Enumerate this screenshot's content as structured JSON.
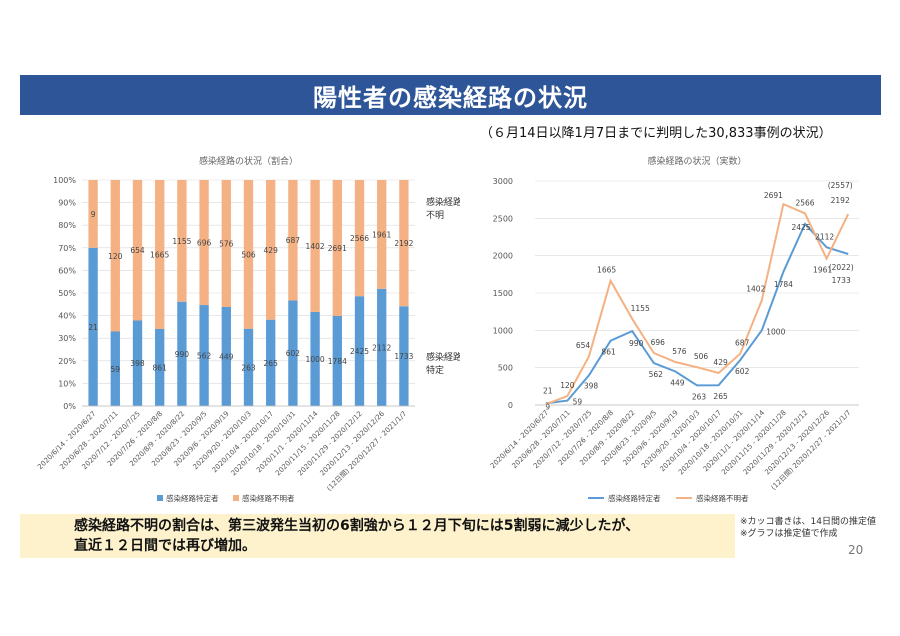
{
  "header": {
    "title": "陽性者の感染経路の状況",
    "subtitle": "（６月14日以降1月7日までに判明した30,833事例の状況）"
  },
  "summary": {
    "line1": "感染経路不明の割合は、第三波発生当初の6割強から１２月下旬には5割弱に減少したが、",
    "line2": "直近１２日間では再び増加。"
  },
  "notes": {
    "note1": "※カッコ書きは、14日間の推定値",
    "note2": "※グラフは推定値で作成"
  },
  "page_number": "20",
  "colors": {
    "known": "#5b9bd5",
    "unknown": "#f4b183",
    "title_bg": "#2d5597",
    "summary_bg": "#fdf2cc"
  },
  "chart_data": [
    {
      "type": "bar",
      "stacked": "percent",
      "title": "感染経路の状況（割合）",
      "categories": [
        "2020/6/14 - 2020/6/27",
        "2020/6/28 - 2020/7/11",
        "2020/7/12 - 2020/7/25",
        "2020/7/26 - 2020/8/8",
        "2020/8/9 - 2020/8/22",
        "2020/8/23 - 2020/9/5",
        "2020/9/6 - 2020/9/19",
        "2020/9/20 - 2020/10/3",
        "2020/10/4 - 2020/10/17",
        "2020/10/18 - 2020/10/31",
        "2020/11/1 - 2020/11/14",
        "2020/11/15 - 2020/11/28",
        "2020/11/29 - 2020/12/12",
        "2020/12/13 - 2020/12/26",
        "2020/12/27 - 2021/1/7"
      ],
      "last_category_note": "(12日間)",
      "series": [
        {
          "name": "感染経路特定者",
          "values": [
            21,
            59,
            398,
            861,
            990,
            562,
            449,
            263,
            265,
            602,
            1000,
            1784,
            2425,
            2112,
            1733
          ],
          "labels": [
            "21",
            "59",
            "398",
            "861",
            "990",
            "562",
            "449",
            "263",
            "265",
            "602",
            "1000",
            "1784",
            "2425",
            "2112",
            "1733"
          ]
        },
        {
          "name": "感染経路不明者",
          "values": [
            9,
            120,
            654,
            1665,
            1155,
            696,
            576,
            506,
            429,
            687,
            1402,
            2691,
            2566,
            1961,
            2192
          ],
          "labels": [
            "9",
            "120",
            "654",
            "1665",
            "1155",
            "696",
            "576",
            "506",
            "429",
            "687",
            "1402",
            "2691",
            "2566",
            "1961",
            "2192"
          ]
        }
      ],
      "yticks": [
        "0%",
        "10%",
        "20%",
        "30%",
        "40%",
        "50%",
        "60%",
        "70%",
        "80%",
        "90%",
        "100%"
      ],
      "ylim": [
        0,
        100
      ],
      "side_labels": {
        "top": [
          "感染経路",
          "不明"
        ],
        "bottom": [
          "感染経路",
          "特定"
        ]
      },
      "legend": [
        "感染経路特定者",
        "感染経路不明者"
      ]
    },
    {
      "type": "line",
      "title": "感染経路の状況（実数）",
      "categories": [
        "2020/6/14 - 2020/6/27",
        "2020/6/28 - 2020/7/11",
        "2020/7/12 - 2020/7/25",
        "2020/7/26 - 2020/8/8",
        "2020/8/9 - 2020/8/22",
        "2020/8/23 - 2020/9/5",
        "2020/9/6 - 2020/9/19",
        "2020/9/20 - 2020/10/3",
        "2020/10/4 - 2020/10/17",
        "2020/10/18 - 2020/10/31",
        "2020/11/1 - 2020/11/14",
        "2020/11/15 - 2020/11/28",
        "2020/11/29 - 2020/12/12",
        "2020/12/13 - 2020/12/26",
        "2020/12/27 - 2021/1/7"
      ],
      "last_category_note": "(12日間)",
      "series": [
        {
          "name": "感染経路特定者",
          "values": [
            21,
            59,
            398,
            861,
            990,
            562,
            449,
            263,
            265,
            602,
            1000,
            1784,
            2425,
            2112,
            2022
          ]
        },
        {
          "name": "感染経路不明者",
          "values": [
            9,
            120,
            654,
            1665,
            1155,
            696,
            576,
            506,
            429,
            687,
            1402,
            2691,
            2566,
            1961,
            2557
          ]
        }
      ],
      "point_labels": [
        {
          "text": "21",
          "series": 0,
          "index": 0
        },
        {
          "text": "9",
          "series": 1,
          "index": 0
        },
        {
          "text": "120",
          "series": 1,
          "index": 1
        },
        {
          "text": "59",
          "series": 0,
          "index": 1
        },
        {
          "text": "654",
          "series": 1,
          "index": 2
        },
        {
          "text": "398",
          "series": 0,
          "index": 2
        },
        {
          "text": "1665",
          "series": 1,
          "index": 3
        },
        {
          "text": "861",
          "series": 0,
          "index": 3
        },
        {
          "text": "1155",
          "series": 1,
          "index": 4
        },
        {
          "text": "990",
          "series": 0,
          "index": 4
        },
        {
          "text": "696",
          "series": 1,
          "index": 5
        },
        {
          "text": "562",
          "series": 0,
          "index": 5
        },
        {
          "text": "576",
          "series": 1,
          "index": 6
        },
        {
          "text": "449",
          "series": 0,
          "index": 6
        },
        {
          "text": "506",
          "series": 1,
          "index": 7
        },
        {
          "text": "263",
          "series": 0,
          "index": 7
        },
        {
          "text": "429",
          "series": 1,
          "index": 8
        },
        {
          "text": "265",
          "series": 0,
          "index": 8
        },
        {
          "text": "687",
          "series": 1,
          "index": 9
        },
        {
          "text": "602",
          "series": 0,
          "index": 9
        },
        {
          "text": "1402",
          "series": 1,
          "index": 10
        },
        {
          "text": "1000",
          "series": 0,
          "index": 10
        },
        {
          "text": "2691",
          "series": 1,
          "index": 11
        },
        {
          "text": "1784",
          "series": 0,
          "index": 11
        },
        {
          "text": "2566",
          "series": 1,
          "index": 12
        },
        {
          "text": "2425",
          "series": 0,
          "index": 12
        },
        {
          "text": "1961",
          "series": 1,
          "index": 13
        },
        {
          "text": "2112",
          "series": 0,
          "index": 13
        },
        {
          "text": "(2557)",
          "series": 1,
          "index": 14
        },
        {
          "text": "2192",
          "series": 1,
          "index": 14
        },
        {
          "text": "(2022)",
          "series": 0,
          "index": 14
        },
        {
          "text": "1733",
          "series": 0,
          "index": 14
        }
      ],
      "yticks": [
        "0",
        "500",
        "1000",
        "1500",
        "2000",
        "2500",
        "3000"
      ],
      "ylim": [
        0,
        3000
      ],
      "legend": [
        "感染経路特定者",
        "感染経路不明者"
      ]
    }
  ]
}
